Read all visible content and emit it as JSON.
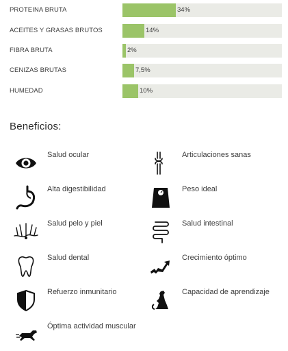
{
  "nutrition": [
    {
      "label": "PROTEINA BRUTA",
      "value_text": "34%",
      "fill_percent": 34
    },
    {
      "label": "ACEITES Y GRASAS BRUTOS",
      "value_text": "14%",
      "fill_percent": 14
    },
    {
      "label": "FIBRA BRUTA",
      "value_text": "2%",
      "fill_percent": 2
    },
    {
      "label": "CENIZAS BRUTAS",
      "value_text": "7,5%",
      "fill_percent": 7.5
    },
    {
      "label": "HUMEDAD",
      "value_text": "10%",
      "fill_percent": 10
    }
  ],
  "colors": {
    "bar_fill": "#9bc468",
    "bar_track": "#eaebe6",
    "text": "#3d3d3d"
  },
  "benefits_title": "Beneficios:",
  "benefits": [
    {
      "label": "Salud ocular",
      "icon": "eye-icon"
    },
    {
      "label": "Articulaciones sanas",
      "icon": "joint-icon"
    },
    {
      "label": "Alta digestibilidad",
      "icon": "stomach-icon"
    },
    {
      "label": "Peso ideal",
      "icon": "scale-icon"
    },
    {
      "label": "Salud pelo y piel",
      "icon": "hair-skin-icon"
    },
    {
      "label": "Salud intestinal",
      "icon": "intestine-icon"
    },
    {
      "label": "Salud dental",
      "icon": "tooth-icon"
    },
    {
      "label": "Crecimiento óptimo",
      "icon": "growth-icon"
    },
    {
      "label": "Refuerzo inmunitario",
      "icon": "shield-icon"
    },
    {
      "label": "Capacidad de aprendizaje",
      "icon": "sitting-dog-icon"
    },
    {
      "label": "Óptima actividad muscular",
      "icon": "running-dog-icon"
    }
  ]
}
